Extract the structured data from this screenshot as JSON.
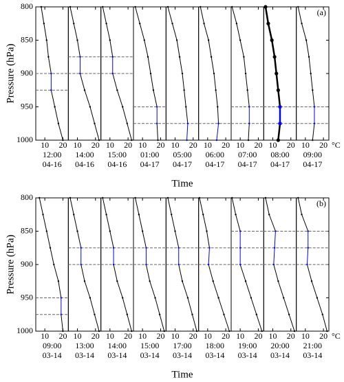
{
  "chart_data": [
    {
      "type": "line",
      "label": "(a)",
      "ylabel": "Pressure (hPa)",
      "xlabel": "Time",
      "x_unit": "°C",
      "ylim": [
        800,
        1000
      ],
      "yticks": [
        800,
        850,
        900,
        950,
        1000
      ],
      "xlim": [
        5,
        23
      ],
      "xticks": [
        10,
        20
      ],
      "levels": [
        800,
        825,
        850,
        875,
        900,
        925,
        950,
        975,
        1000
      ],
      "color": "#000000",
      "inversion_color": "#0000ff",
      "series": [
        {
          "name": "12:00",
          "date": "04-16",
          "values": [
            8,
            9.5,
            11,
            12,
            13.5,
            13.5,
            15.5,
            17.5,
            20
          ],
          "dashed_levels": [
            900,
            925
          ]
        },
        {
          "name": "14:00",
          "date": "04-16",
          "values": [
            6,
            8,
            10,
            11.5,
            11.5,
            14,
            17,
            19.5,
            22
          ],
          "dashed_levels": [
            875,
            900
          ]
        },
        {
          "name": "15:00",
          "date": "04-16",
          "values": [
            6,
            8,
            10,
            11.5,
            11.5,
            14,
            17,
            19.5,
            22
          ],
          "dashed_levels": [
            875,
            900
          ]
        },
        {
          "name": "01:00",
          "date": "04-17",
          "values": [
            6,
            8.5,
            11,
            13,
            14.5,
            16,
            18,
            18,
            18.5
          ],
          "dashed_levels": [
            950,
            975
          ]
        },
        {
          "name": "05:00",
          "date": "04-17",
          "values": [
            6,
            8.5,
            11,
            12.5,
            14,
            15,
            16,
            17,
            16.5
          ],
          "dashed_levels": [
            975
          ]
        },
        {
          "name": "06:00",
          "date": "04-17",
          "values": [
            6,
            8,
            10.5,
            12,
            13.5,
            14.5,
            15.5,
            16,
            15
          ],
          "dashed_levels": [
            975
          ]
        },
        {
          "name": "07:00",
          "date": "04-17",
          "values": [
            5.5,
            8,
            10,
            12,
            13,
            14,
            15,
            15,
            14.5
          ],
          "dashed_levels": [
            950,
            975
          ]
        },
        {
          "name": "08:00",
          "date": "04-17",
          "values": [
            6,
            7.5,
            9.5,
            11,
            12,
            13,
            14,
            14,
            13
          ],
          "dashed_levels": [
            950,
            975
          ],
          "bold": true
        },
        {
          "name": "09:00",
          "date": "04-17",
          "values": [
            6,
            8,
            10.5,
            12,
            13,
            14,
            15,
            15,
            14
          ],
          "dashed_levels": [
            950,
            975
          ]
        }
      ]
    },
    {
      "type": "line",
      "label": "(b)",
      "ylabel": "Pressure (hPa)",
      "xlabel": "Time",
      "x_unit": "°C",
      "ylim": [
        800,
        1000
      ],
      "yticks": [
        800,
        850,
        900,
        950,
        1000
      ],
      "xlim": [
        5,
        23
      ],
      "xticks": [
        10,
        20
      ],
      "levels": [
        800,
        825,
        850,
        875,
        900,
        925,
        950,
        975,
        1000
      ],
      "color": "#000000",
      "inversion_color": "#0000ff",
      "series": [
        {
          "name": "09:00",
          "date": "03-14",
          "values": [
            7,
            9,
            11,
            13,
            15,
            17.5,
            19,
            19,
            20
          ],
          "dashed_levels": [
            950,
            975
          ]
        },
        {
          "name": "13:00",
          "date": "03-14",
          "values": [
            6,
            8,
            10,
            12,
            12,
            14,
            17,
            19.5,
            22
          ],
          "dashed_levels": [
            875,
            900
          ]
        },
        {
          "name": "14:00",
          "date": "03-14",
          "values": [
            6,
            8,
            10,
            12,
            12,
            14,
            17,
            19.5,
            22
          ],
          "dashed_levels": [
            875,
            900
          ]
        },
        {
          "name": "15:00",
          "date": "03-14",
          "values": [
            6,
            8,
            10,
            12,
            12,
            14,
            17,
            19.5,
            22
          ],
          "dashed_levels": [
            875,
            900
          ]
        },
        {
          "name": "17:00",
          "date": "03-14",
          "values": [
            6,
            8,
            10,
            12,
            12,
            14,
            17,
            19.5,
            22
          ],
          "dashed_levels": [
            875,
            900
          ]
        },
        {
          "name": "18:00",
          "date": "03-14",
          "values": [
            5.5,
            7.5,
            9.5,
            11,
            10.5,
            13,
            16,
            19,
            22
          ],
          "dashed_levels": [
            875,
            900
          ]
        },
        {
          "name": "19:00",
          "date": "03-14",
          "values": [
            5.5,
            7.5,
            10,
            10,
            10,
            13,
            16,
            19,
            22
          ],
          "dashed_levels": [
            850,
            875,
            900
          ]
        },
        {
          "name": "20:00",
          "date": "03-14",
          "values": [
            6,
            8,
            11.5,
            11,
            10.5,
            13,
            16,
            19,
            22
          ],
          "dashed_levels": [
            850,
            875,
            900
          ]
        },
        {
          "name": "21:00",
          "date": "03-14",
          "values": [
            6,
            8,
            11.5,
            11.5,
            11,
            13.5,
            16.5,
            19.5,
            22
          ],
          "dashed_levels": [
            850,
            875,
            900
          ]
        }
      ]
    }
  ]
}
